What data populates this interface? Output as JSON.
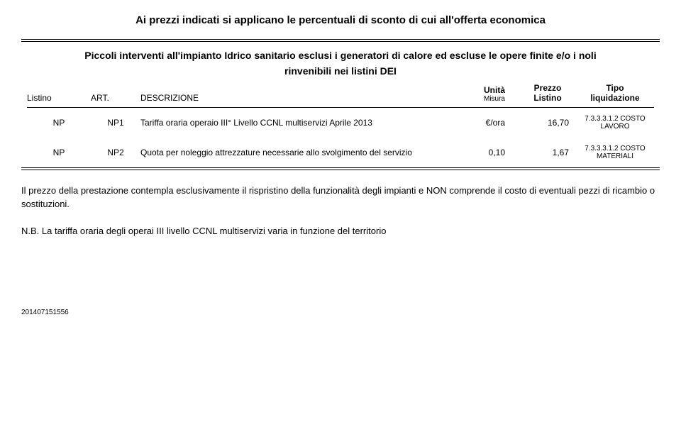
{
  "title": "Ai prezzi indicati si applicano le percentuali di sconto di cui all'offerta economica",
  "table": {
    "header_line1": "Piccoli interventi all'impianto Idrico sanitario esclusi i generatori di calore ed escluse le opere finite e/o i noli",
    "header_line2": "rinvenibili nei listini DEI",
    "columns": {
      "listino": "Listino",
      "art": "ART.",
      "desc": "DESCRIZIONE",
      "unit_line1": "Unità",
      "unit_line2": "Misura",
      "prezzo_line1": "Prezzo",
      "prezzo_line2": "Listino",
      "tipo_line1": "Tipo",
      "tipo_line2": "liquidazione"
    },
    "rows": [
      {
        "listino": "NP",
        "art": "NP1",
        "desc": "Tariffa oraria operaio III° Livello CCNL multiservizi Aprile 2013",
        "unit": "€/ora",
        "prezzo": "16,70",
        "tipo_line1": "7.3.3.3.1.2 COSTO",
        "tipo_line2": "LAVORO"
      },
      {
        "listino": "NP",
        "art": "NP2",
        "desc": "Quota per noleggio attrezzature necessarie allo svolgimento del servizio",
        "unit": "0,10",
        "prezzo": "1,67",
        "tipo_line1": "7.3.3.3.1.2 COSTO",
        "tipo_line2": "MATERIALI"
      }
    ]
  },
  "note1": "Il prezzo della prestazione contempla esclusivamente il rispristino della funzionalità degli impianti e NON comprende il costo di eventuali pezzi di ricambio o sostituzioni.",
  "note2": "N.B. La tariffa oraria degli operai III livello CCNL multiservizi varia in funzione del territorio",
  "footer": "201407151556",
  "colors": {
    "text": "#000000",
    "background": "#ffffff"
  }
}
